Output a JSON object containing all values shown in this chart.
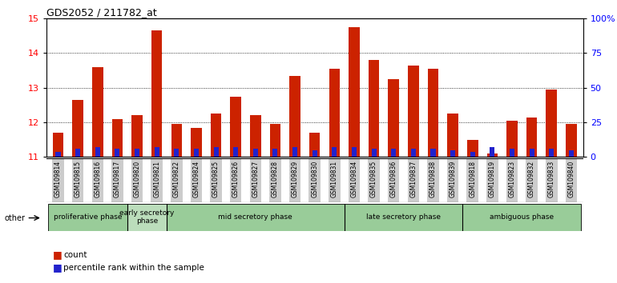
{
  "title": "GDS2052 / 211782_at",
  "samples": [
    "GSM109814",
    "GSM109815",
    "GSM109816",
    "GSM109817",
    "GSM109820",
    "GSM109821",
    "GSM109822",
    "GSM109824",
    "GSM109825",
    "GSM109826",
    "GSM109827",
    "GSM109828",
    "GSM109829",
    "GSM109830",
    "GSM109831",
    "GSM109834",
    "GSM109835",
    "GSM109836",
    "GSM109837",
    "GSM109838",
    "GSM109839",
    "GSM109818",
    "GSM109819",
    "GSM109823",
    "GSM109832",
    "GSM109833",
    "GSM109840"
  ],
  "count_values": [
    11.7,
    12.65,
    13.6,
    12.1,
    12.2,
    14.65,
    11.95,
    11.85,
    12.25,
    12.75,
    12.2,
    11.95,
    13.35,
    11.7,
    13.55,
    14.75,
    13.8,
    13.25,
    13.65,
    13.55,
    12.25,
    11.5,
    11.1,
    12.05,
    12.15,
    12.95,
    11.95
  ],
  "percentile_values": [
    4,
    6,
    7,
    6,
    6,
    7,
    6,
    6,
    7,
    7,
    6,
    6,
    7,
    5,
    7,
    7,
    6,
    6,
    6,
    6,
    5,
    4,
    7,
    6,
    6,
    6,
    5
  ],
  "ylim_left": [
    11,
    15
  ],
  "ylim_right": [
    0,
    100
  ],
  "yticks_left": [
    11,
    12,
    13,
    14,
    15
  ],
  "yticks_right": [
    0,
    25,
    50,
    75,
    100
  ],
  "ytick_labels_right": [
    "0",
    "25",
    "50",
    "75",
    "100%"
  ],
  "bar_color_red": "#cc2200",
  "bar_color_blue": "#2222cc",
  "bar_width": 0.55,
  "phases": [
    {
      "label": "proliferative phase",
      "start": 0,
      "end": 4,
      "color": "#99cc99"
    },
    {
      "label": "early secretory\nphase",
      "start": 4,
      "end": 6,
      "color": "#bbddbb"
    },
    {
      "label": "mid secretory phase",
      "start": 6,
      "end": 15,
      "color": "#99cc99"
    },
    {
      "label": "late secretory phase",
      "start": 15,
      "end": 21,
      "color": "#99cc99"
    },
    {
      "label": "ambiguous phase",
      "start": 21,
      "end": 27,
      "color": "#99cc99"
    }
  ],
  "phase_dividers": [
    4,
    6,
    15,
    21
  ],
  "tick_bg_color": "#cccccc",
  "baseline": 11
}
